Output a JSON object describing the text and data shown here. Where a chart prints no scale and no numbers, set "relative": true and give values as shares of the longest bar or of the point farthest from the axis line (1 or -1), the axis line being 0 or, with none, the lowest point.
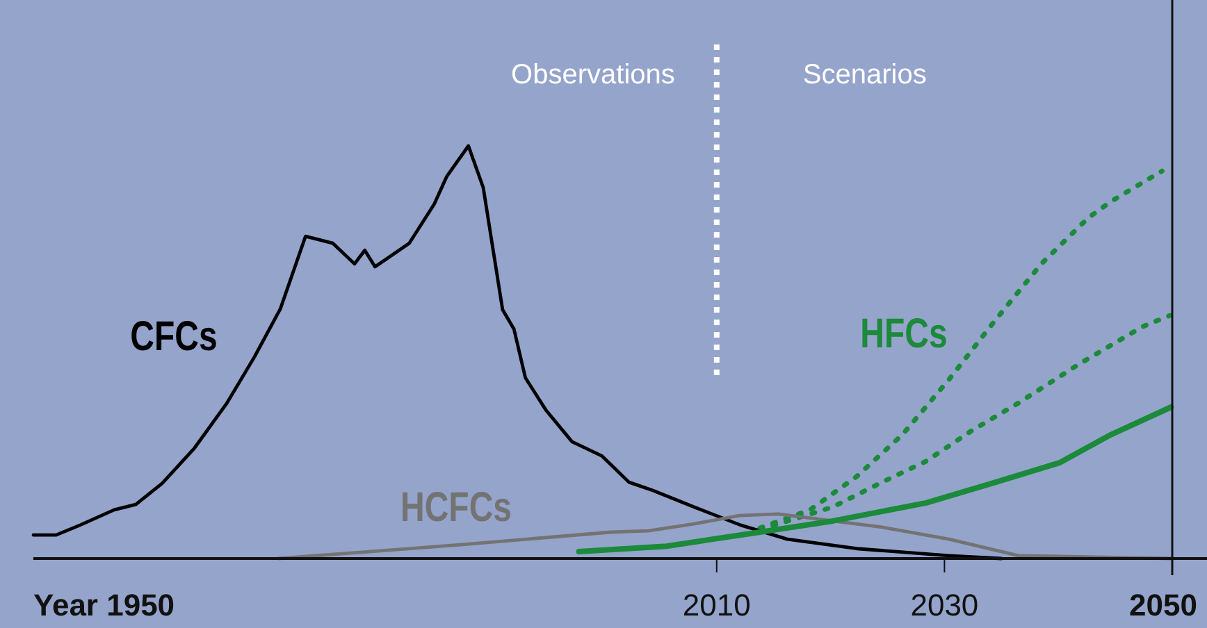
{
  "chart_data": {
    "type": "line",
    "relative": true,
    "xlim": [
      1950,
      2050
    ],
    "xticks": [
      {
        "value": 1950,
        "label": "Year 1950"
      },
      2010,
      2030,
      2050
    ],
    "series": [
      {
        "name": "CFCs",
        "color": "#000000",
        "x": [
          1950,
          1952,
          1954.1,
          1957.1,
          1959,
          1961.3,
          1964.1,
          1967,
          1969.4,
          1971.7,
          1973.9,
          1976.3,
          1978.2,
          1979.1,
          1980,
          1983,
          1985.2,
          1986.3,
          1988.2,
          1989.5,
          1991.2,
          1992.2,
          1993.2,
          1995,
          1997.3,
          1999.9,
          2002.3,
          2004.4,
          2008,
          2012.1,
          2016.2,
          2022.3,
          2030.4,
          2035
        ],
        "values": [
          0.057,
          0.057,
          0.081,
          0.118,
          0.131,
          0.182,
          0.266,
          0.377,
          0.488,
          0.606,
          0.781,
          0.764,
          0.714,
          0.747,
          0.707,
          0.764,
          0.859,
          0.926,
          1,
          0.899,
          0.603,
          0.556,
          0.438,
          0.36,
          0.283,
          0.249,
          0.185,
          0.165,
          0.125,
          0.081,
          0.047,
          0.024,
          0.007,
          0
        ]
      },
      {
        "name": "HCFCs",
        "color": "#737373",
        "x": [
          1971.5,
          1987.7,
          2000.7,
          2004,
          2008,
          2012,
          2015.4,
          2020.2,
          2024.3,
          2030.4,
          2036.5,
          2050
        ],
        "values": [
          0,
          0.034,
          0.064,
          0.067,
          0.084,
          0.104,
          0.108,
          0.091,
          0.077,
          0.047,
          0.007,
          0
        ]
      },
      {
        "name": "HFCs",
        "color": "#1b8a3a",
        "x": [
          1997.9,
          2005.6,
          2013.8,
          2020.2,
          2028.4,
          2034.5,
          2040.1,
          2044.6,
          2049.9
        ],
        "values": [
          0.017,
          0.03,
          0.064,
          0.091,
          0.135,
          0.185,
          0.232,
          0.3,
          0.367
        ]
      },
      {
        "color": "#1b8a3a",
        "line_style": "dotted",
        "x": [
          2013.8,
          2018.2,
          2022.3,
          2026.3,
          2030.4,
          2034.5,
          2038.5,
          2042.6,
          2044.6,
          2049.1
        ],
        "values": [
          0.074,
          0.118,
          0.199,
          0.3,
          0.434,
          0.579,
          0.714,
          0.825,
          0.865,
          0.939
        ]
      },
      {
        "color": "#1b8a3a",
        "line_style": "dotted",
        "x": [
          2013.8,
          2020.2,
          2024.3,
          2028.4,
          2032.4,
          2036.5,
          2041.8,
          2047.4,
          2049.8
        ],
        "values": [
          0.07,
          0.125,
          0.182,
          0.236,
          0.31,
          0.377,
          0.471,
          0.562,
          0.589
        ]
      }
    ],
    "ref_lines": [
      {
        "axis": "x",
        "value": 2010,
        "color": "#ffffff",
        "line_style": "dotted"
      }
    ],
    "annotations": [
      "Observations",
      "Scenarios"
    ]
  }
}
